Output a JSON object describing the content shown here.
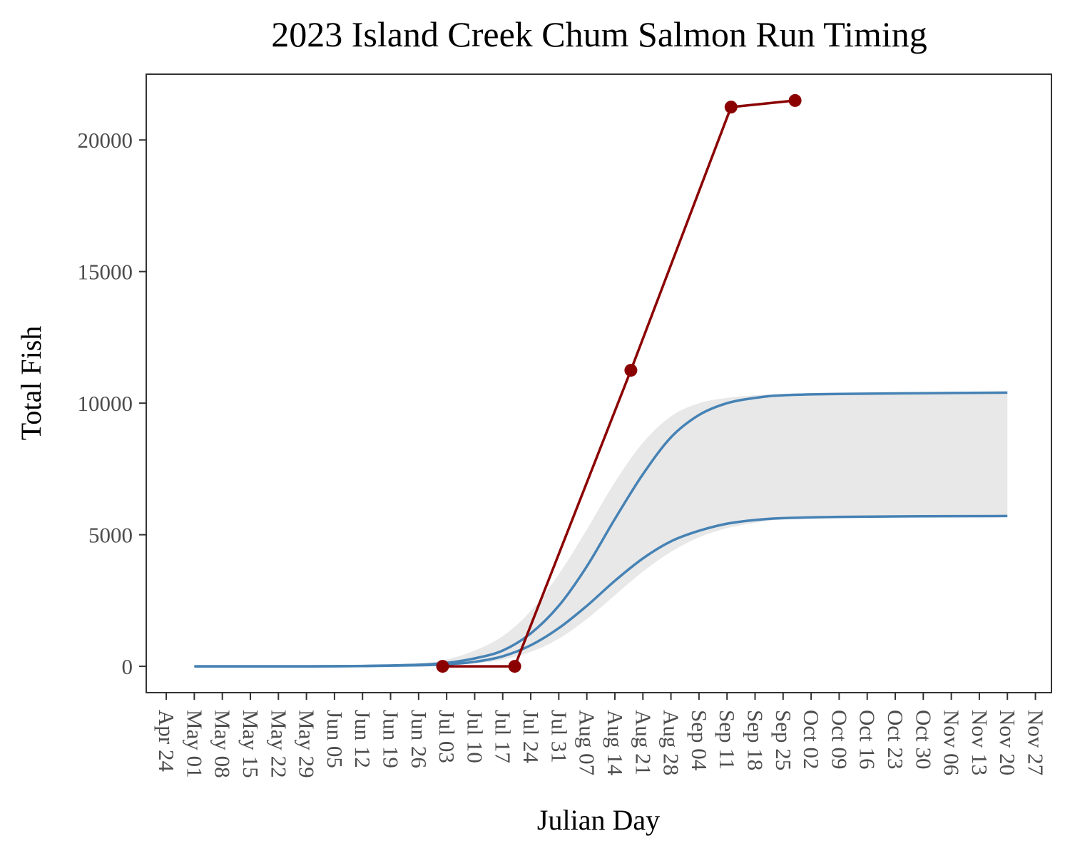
{
  "chart_data": {
    "type": "line",
    "title": "2023 Island Creek Chum Salmon Run Timing",
    "xlabel": "Julian Day",
    "ylabel": "Total Fish",
    "x_axis_type": "date",
    "xlim": [
      "2023-04-19",
      "2023-12-01"
    ],
    "ylim": [
      -1000,
      22500
    ],
    "y_ticks": [
      0,
      5000,
      10000,
      15000,
      20000
    ],
    "x_ticks": [
      {
        "date": "2023-04-24",
        "label": "Apr 24"
      },
      {
        "date": "2023-05-01",
        "label": "May 01"
      },
      {
        "date": "2023-05-08",
        "label": "May 08"
      },
      {
        "date": "2023-05-15",
        "label": "May 15"
      },
      {
        "date": "2023-05-22",
        "label": "May 22"
      },
      {
        "date": "2023-05-29",
        "label": "May 29"
      },
      {
        "date": "2023-06-05",
        "label": "Jun 05"
      },
      {
        "date": "2023-06-12",
        "label": "Jun 12"
      },
      {
        "date": "2023-06-19",
        "label": "Jun 19"
      },
      {
        "date": "2023-06-26",
        "label": "Jun 26"
      },
      {
        "date": "2023-07-03",
        "label": "Jul 03"
      },
      {
        "date": "2023-07-10",
        "label": "Jul 10"
      },
      {
        "date": "2023-07-17",
        "label": "Jul 17"
      },
      {
        "date": "2023-07-24",
        "label": "Jul 24"
      },
      {
        "date": "2023-07-31",
        "label": "Jul 31"
      },
      {
        "date": "2023-08-07",
        "label": "Aug 07"
      },
      {
        "date": "2023-08-14",
        "label": "Aug 14"
      },
      {
        "date": "2023-08-21",
        "label": "Aug 21"
      },
      {
        "date": "2023-08-28",
        "label": "Aug 28"
      },
      {
        "date": "2023-09-04",
        "label": "Sep 04"
      },
      {
        "date": "2023-09-11",
        "label": "Sep 11"
      },
      {
        "date": "2023-09-18",
        "label": "Sep 18"
      },
      {
        "date": "2023-09-25",
        "label": "Sep 25"
      },
      {
        "date": "2023-10-02",
        "label": "Oct 02"
      },
      {
        "date": "2023-10-09",
        "label": "Oct 09"
      },
      {
        "date": "2023-10-16",
        "label": "Oct 16"
      },
      {
        "date": "2023-10-23",
        "label": "Oct 23"
      },
      {
        "date": "2023-10-30",
        "label": "Oct 30"
      },
      {
        "date": "2023-11-06",
        "label": "Nov 06"
      },
      {
        "date": "2023-11-13",
        "label": "Nov 13"
      },
      {
        "date": "2023-11-20",
        "label": "Nov 20"
      },
      {
        "date": "2023-11-27",
        "label": "Nov 27"
      }
    ],
    "grid": false,
    "legend": "none",
    "colors": {
      "observed": "#8b0000",
      "bounds": "#4682b4",
      "ribbon": "#e8e8e8",
      "panel_border": "#333333",
      "tick_text": "#4d4d4d"
    },
    "series": [
      {
        "role": "observed",
        "style": "line+points",
        "points": [
          {
            "date": "2023-07-02",
            "y": 0
          },
          {
            "date": "2023-07-20",
            "y": 0
          },
          {
            "date": "2023-08-18",
            "y": 11250
          },
          {
            "date": "2023-09-12",
            "y": 21250
          },
          {
            "date": "2023-09-28",
            "y": 21500
          }
        ]
      },
      {
        "role": "bound",
        "style": "line",
        "points": [
          {
            "date": "2023-05-01",
            "y": 0
          },
          {
            "date": "2023-05-29",
            "y": 0
          },
          {
            "date": "2023-06-12",
            "y": 15
          },
          {
            "date": "2023-06-26",
            "y": 60
          },
          {
            "date": "2023-07-03",
            "y": 130
          },
          {
            "date": "2023-07-10",
            "y": 300
          },
          {
            "date": "2023-07-17",
            "y": 600
          },
          {
            "date": "2023-07-24",
            "y": 1250
          },
          {
            "date": "2023-07-31",
            "y": 2300
          },
          {
            "date": "2023-08-07",
            "y": 3800
          },
          {
            "date": "2023-08-14",
            "y": 5600
          },
          {
            "date": "2023-08-21",
            "y": 7300
          },
          {
            "date": "2023-08-28",
            "y": 8700
          },
          {
            "date": "2023-09-04",
            "y": 9550
          },
          {
            "date": "2023-09-11",
            "y": 10000
          },
          {
            "date": "2023-09-18",
            "y": 10200
          },
          {
            "date": "2023-09-25",
            "y": 10300
          },
          {
            "date": "2023-10-09",
            "y": 10350
          },
          {
            "date": "2023-10-30",
            "y": 10380
          },
          {
            "date": "2023-11-20",
            "y": 10400
          }
        ]
      },
      {
        "role": "bound",
        "style": "line",
        "points": [
          {
            "date": "2023-05-01",
            "y": 0
          },
          {
            "date": "2023-05-29",
            "y": 0
          },
          {
            "date": "2023-06-12",
            "y": 10
          },
          {
            "date": "2023-06-26",
            "y": 40
          },
          {
            "date": "2023-07-03",
            "y": 80
          },
          {
            "date": "2023-07-10",
            "y": 170
          },
          {
            "date": "2023-07-17",
            "y": 380
          },
          {
            "date": "2023-07-24",
            "y": 800
          },
          {
            "date": "2023-07-31",
            "y": 1450
          },
          {
            "date": "2023-08-07",
            "y": 2300
          },
          {
            "date": "2023-08-14",
            "y": 3250
          },
          {
            "date": "2023-08-21",
            "y": 4100
          },
          {
            "date": "2023-08-28",
            "y": 4750
          },
          {
            "date": "2023-09-04",
            "y": 5150
          },
          {
            "date": "2023-09-11",
            "y": 5420
          },
          {
            "date": "2023-09-18",
            "y": 5560
          },
          {
            "date": "2023-09-25",
            "y": 5630
          },
          {
            "date": "2023-10-09",
            "y": 5680
          },
          {
            "date": "2023-10-30",
            "y": 5700
          },
          {
            "date": "2023-11-20",
            "y": 5710
          }
        ]
      },
      {
        "role": "ribbon",
        "style": "band",
        "points": [
          {
            "date": "2023-05-01",
            "lo": 0,
            "hi": 0
          },
          {
            "date": "2023-05-29",
            "lo": 0,
            "hi": 0
          },
          {
            "date": "2023-06-12",
            "lo": 5,
            "hi": 25
          },
          {
            "date": "2023-06-26",
            "lo": 25,
            "hi": 110
          },
          {
            "date": "2023-07-03",
            "lo": 50,
            "hi": 260
          },
          {
            "date": "2023-07-10",
            "lo": 110,
            "hi": 600
          },
          {
            "date": "2023-07-17",
            "lo": 250,
            "hi": 1150
          },
          {
            "date": "2023-07-24",
            "lo": 550,
            "hi": 2100
          },
          {
            "date": "2023-07-31",
            "lo": 1050,
            "hi": 3500
          },
          {
            "date": "2023-08-07",
            "lo": 1800,
            "hi": 5200
          },
          {
            "date": "2023-08-14",
            "lo": 2700,
            "hi": 7000
          },
          {
            "date": "2023-08-21",
            "lo": 3600,
            "hi": 8500
          },
          {
            "date": "2023-08-28",
            "lo": 4350,
            "hi": 9500
          },
          {
            "date": "2023-09-04",
            "lo": 4900,
            "hi": 10000
          },
          {
            "date": "2023-09-11",
            "lo": 5250,
            "hi": 10200
          },
          {
            "date": "2023-09-18",
            "lo": 5450,
            "hi": 10300
          },
          {
            "date": "2023-09-25",
            "lo": 5580,
            "hi": 10350
          },
          {
            "date": "2023-10-09",
            "lo": 5670,
            "hi": 10390
          },
          {
            "date": "2023-10-30",
            "lo": 5700,
            "hi": 10400
          },
          {
            "date": "2023-11-20",
            "lo": 5710,
            "hi": 10400
          }
        ]
      }
    ]
  }
}
